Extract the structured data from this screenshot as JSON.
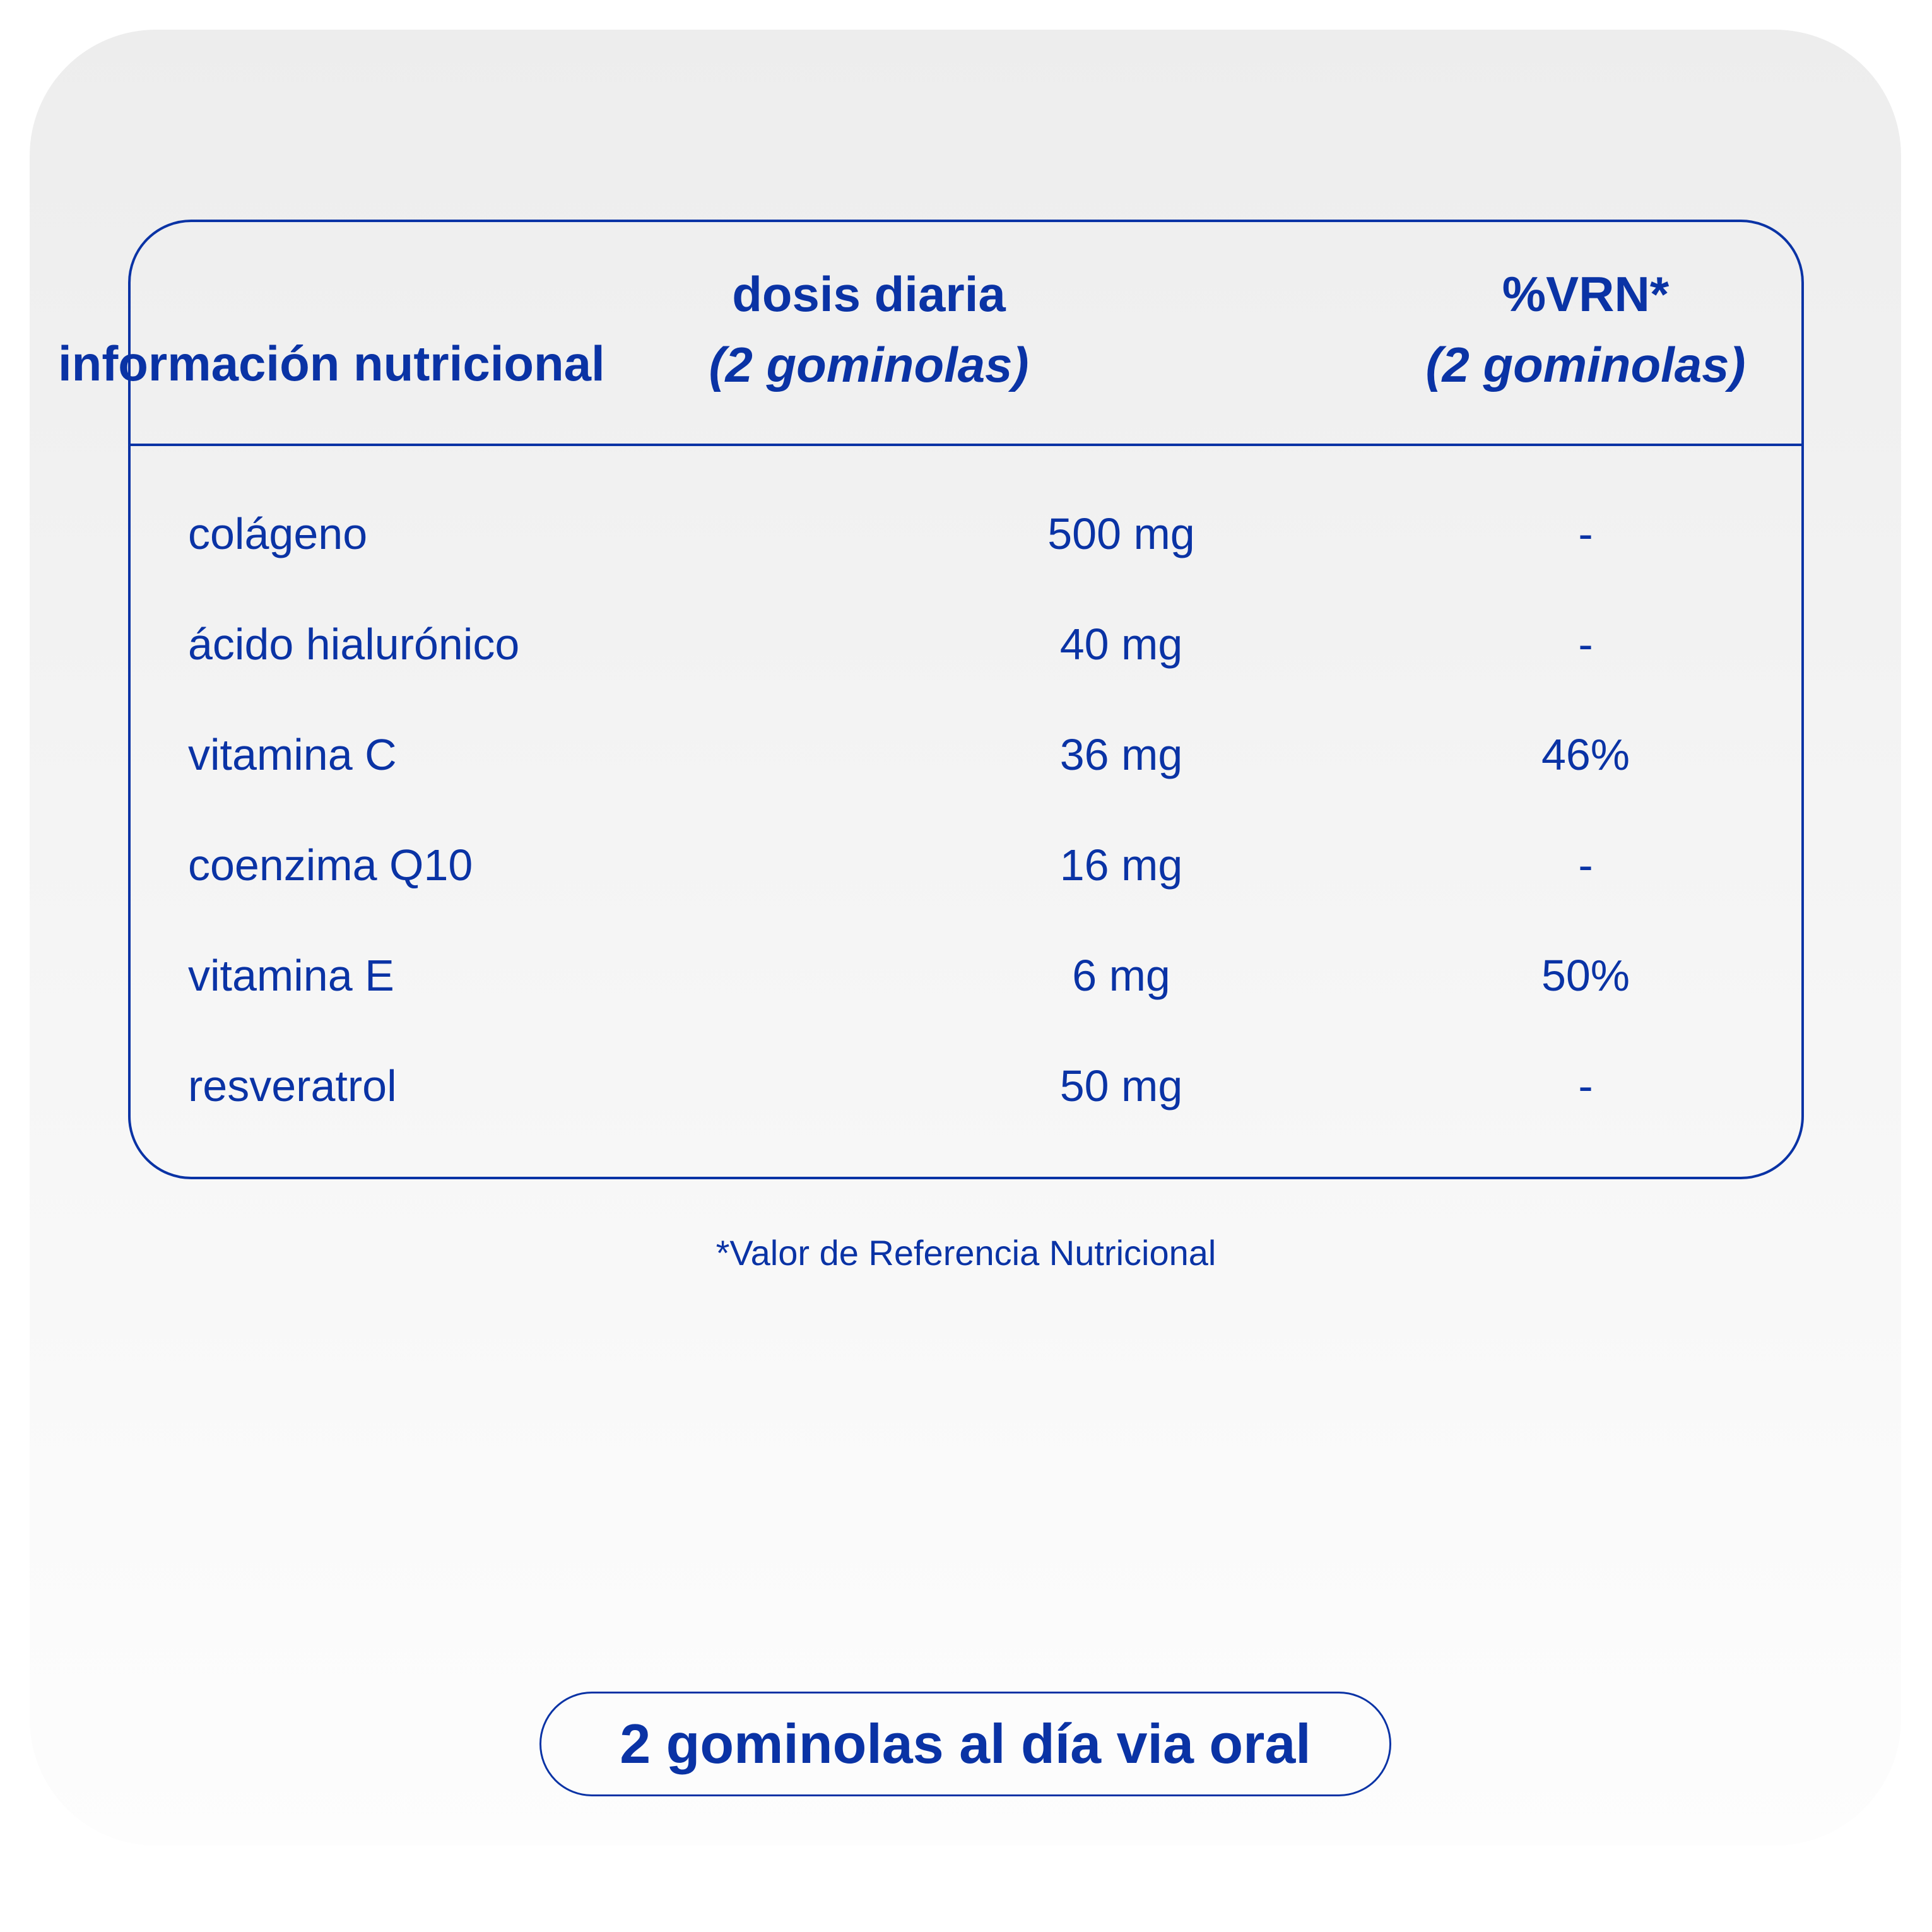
{
  "header": {
    "col1": "información nutricional",
    "col2_line1": "dosis diaria",
    "col2_line2": "(2 gominolas)",
    "col3_line1": "%VRN*",
    "col3_line2": "(2 gominolas)"
  },
  "rows": [
    {
      "name": "colágeno",
      "dose": "500 mg",
      "vrn": "-"
    },
    {
      "name": "ácido hialurónico",
      "dose": "40 mg",
      "vrn": "-"
    },
    {
      "name": "vitamina C",
      "dose": "36 mg",
      "vrn": "46%"
    },
    {
      "name": "coenzima Q10",
      "dose": "16 mg",
      "vrn": "-"
    },
    {
      "name": "vitamina E",
      "dose": "6 mg",
      "vrn": "50%"
    },
    {
      "name": "resveratrol",
      "dose": "50 mg",
      "vrn": "-"
    }
  ],
  "footnote": "*Valor de Referencia Nutricional",
  "dosage_badge": "2 gominolas al día via oral",
  "colors": {
    "accent": "#0a33a5"
  }
}
